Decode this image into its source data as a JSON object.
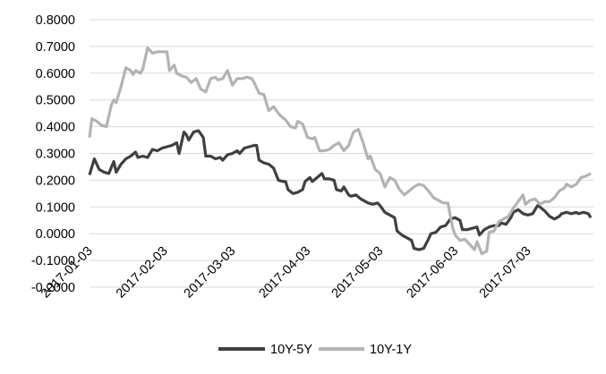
{
  "chart_data": {
    "type": "line",
    "title": "",
    "xlabel": "",
    "ylabel": "",
    "ylim": [
      -0.2,
      0.8
    ],
    "y_ticks": [
      "0.8000",
      "0.7000",
      "0.6000",
      "0.5000",
      "0.4000",
      "0.3000",
      "0.2000",
      "0.1000",
      "0.0000",
      "-0.1000",
      "-0.2000"
    ],
    "x_ticks": [
      "2017-01-03",
      "2017-02-03",
      "2017-03-03",
      "2017-04-03",
      "2017-05-03",
      "2017-06-03",
      "2017-07-03"
    ],
    "grid": "horizontal",
    "legend_position": "bottom",
    "series": [
      {
        "name": "10Y-5Y",
        "color": "#404040",
        "points": [
          [
            "2017-01-03",
            0.22
          ],
          [
            "2017-01-05",
            0.28
          ],
          [
            "2017-01-07",
            0.24
          ],
          [
            "2017-01-09",
            0.23
          ],
          [
            "2017-01-11",
            0.225
          ],
          [
            "2017-01-13",
            0.27
          ],
          [
            "2017-01-14",
            0.23
          ],
          [
            "2017-01-16",
            0.26
          ],
          [
            "2017-01-18",
            0.28
          ],
          [
            "2017-01-20",
            0.29
          ],
          [
            "2017-01-22",
            0.305
          ],
          [
            "2017-01-23",
            0.285
          ],
          [
            "2017-01-25",
            0.29
          ],
          [
            "2017-01-27",
            0.285
          ],
          [
            "2017-01-29",
            0.315
          ],
          [
            "2017-01-31",
            0.31
          ],
          [
            "2017-02-02",
            0.32
          ],
          [
            "2017-02-04",
            0.325
          ],
          [
            "2017-02-06",
            0.33
          ],
          [
            "2017-02-08",
            0.34
          ],
          [
            "2017-02-09",
            0.3
          ],
          [
            "2017-02-11",
            0.38
          ],
          [
            "2017-02-12",
            0.37
          ],
          [
            "2017-02-13",
            0.35
          ],
          [
            "2017-02-15",
            0.38
          ],
          [
            "2017-02-17",
            0.385
          ],
          [
            "2017-02-19",
            0.36
          ],
          [
            "2017-02-20",
            0.29
          ],
          [
            "2017-02-22",
            0.29
          ],
          [
            "2017-02-24",
            0.28
          ],
          [
            "2017-02-26",
            0.285
          ],
          [
            "2017-02-27",
            0.275
          ],
          [
            "2017-03-01",
            0.295
          ],
          [
            "2017-03-03",
            0.3
          ],
          [
            "2017-03-05",
            0.31
          ],
          [
            "2017-03-06",
            0.3
          ],
          [
            "2017-03-08",
            0.32
          ],
          [
            "2017-03-10",
            0.325
          ],
          [
            "2017-03-12",
            0.33
          ],
          [
            "2017-03-13",
            0.33
          ],
          [
            "2017-03-14",
            0.275
          ],
          [
            "2017-03-16",
            0.265
          ],
          [
            "2017-03-18",
            0.26
          ],
          [
            "2017-03-20",
            0.245
          ],
          [
            "2017-03-22",
            0.2
          ],
          [
            "2017-03-24",
            0.195
          ],
          [
            "2017-03-25",
            0.195
          ],
          [
            "2017-03-26",
            0.165
          ],
          [
            "2017-03-28",
            0.15
          ],
          [
            "2017-03-30",
            0.155
          ],
          [
            "2017-04-01",
            0.165
          ],
          [
            "2017-04-02",
            0.195
          ],
          [
            "2017-04-04",
            0.21
          ],
          [
            "2017-04-05",
            0.195
          ],
          [
            "2017-04-07",
            0.21
          ],
          [
            "2017-04-09",
            0.225
          ],
          [
            "2017-04-10",
            0.205
          ],
          [
            "2017-04-12",
            0.205
          ],
          [
            "2017-04-14",
            0.2
          ],
          [
            "2017-04-15",
            0.165
          ],
          [
            "2017-04-17",
            0.16
          ],
          [
            "2017-04-18",
            0.175
          ],
          [
            "2017-04-20",
            0.145
          ],
          [
            "2017-04-21",
            0.14
          ],
          [
            "2017-04-23",
            0.145
          ],
          [
            "2017-04-25",
            0.13
          ],
          [
            "2017-04-27",
            0.12
          ],
          [
            "2017-04-28",
            0.115
          ],
          [
            "2017-04-30",
            0.11
          ],
          [
            "2017-05-02",
            0.115
          ],
          [
            "2017-05-03",
            0.105
          ],
          [
            "2017-05-05",
            0.08
          ],
          [
            "2017-05-07",
            0.07
          ],
          [
            "2017-05-09",
            0.06
          ],
          [
            "2017-05-10",
            0.01
          ],
          [
            "2017-05-12",
            -0.005
          ],
          [
            "2017-05-14",
            -0.015
          ],
          [
            "2017-05-16",
            -0.025
          ],
          [
            "2017-05-17",
            -0.055
          ],
          [
            "2017-05-19",
            -0.06
          ],
          [
            "2017-05-21",
            -0.055
          ],
          [
            "2017-05-23",
            -0.02
          ],
          [
            "2017-05-24",
            0.0
          ],
          [
            "2017-05-26",
            0.005
          ],
          [
            "2017-05-28",
            0.025
          ],
          [
            "2017-05-30",
            0.03
          ],
          [
            "2017-06-01",
            0.055
          ],
          [
            "2017-06-03",
            0.06
          ],
          [
            "2017-06-05",
            0.05
          ],
          [
            "2017-06-06",
            0.015
          ],
          [
            "2017-06-08",
            0.015
          ],
          [
            "2017-06-10",
            0.02
          ],
          [
            "2017-06-12",
            0.025
          ],
          [
            "2017-06-13",
            -0.005
          ],
          [
            "2017-06-15",
            0.015
          ],
          [
            "2017-06-17",
            0.025
          ],
          [
            "2017-06-19",
            0.03
          ],
          [
            "2017-06-21",
            0.03
          ],
          [
            "2017-06-22",
            0.04
          ],
          [
            "2017-06-24",
            0.035
          ],
          [
            "2017-06-26",
            0.06
          ],
          [
            "2017-06-27",
            0.08
          ],
          [
            "2017-06-29",
            0.09
          ],
          [
            "2017-07-01",
            0.075
          ],
          [
            "2017-07-03",
            0.07
          ],
          [
            "2017-07-05",
            0.075
          ],
          [
            "2017-07-07",
            0.105
          ],
          [
            "2017-07-08",
            0.1
          ],
          [
            "2017-07-10",
            0.085
          ],
          [
            "2017-07-12",
            0.065
          ],
          [
            "2017-07-14",
            0.055
          ],
          [
            "2017-07-16",
            0.065
          ],
          [
            "2017-07-17",
            0.075
          ],
          [
            "2017-07-19",
            0.08
          ],
          [
            "2017-07-21",
            0.075
          ],
          [
            "2017-07-23",
            0.08
          ],
          [
            "2017-07-24",
            0.075
          ],
          [
            "2017-07-26",
            0.08
          ],
          [
            "2017-07-28",
            0.075
          ],
          [
            "2017-07-29",
            0.06
          ]
        ]
      },
      {
        "name": "10Y-1Y",
        "color": "#b3b3b3",
        "points": [
          [
            "2017-01-03",
            0.36
          ],
          [
            "2017-01-04",
            0.43
          ],
          [
            "2017-01-06",
            0.42
          ],
          [
            "2017-01-08",
            0.405
          ],
          [
            "2017-01-10",
            0.4
          ],
          [
            "2017-01-12",
            0.48
          ],
          [
            "2017-01-13",
            0.5
          ],
          [
            "2017-01-14",
            0.49
          ],
          [
            "2017-01-16",
            0.55
          ],
          [
            "2017-01-18",
            0.62
          ],
          [
            "2017-01-20",
            0.61
          ],
          [
            "2017-01-21",
            0.595
          ],
          [
            "2017-01-22",
            0.61
          ],
          [
            "2017-01-24",
            0.6
          ],
          [
            "2017-01-25",
            0.615
          ],
          [
            "2017-01-27",
            0.695
          ],
          [
            "2017-01-29",
            0.675
          ],
          [
            "2017-01-31",
            0.68
          ],
          [
            "2017-02-02",
            0.68
          ],
          [
            "2017-02-04",
            0.68
          ],
          [
            "2017-02-05",
            0.61
          ],
          [
            "2017-02-07",
            0.63
          ],
          [
            "2017-02-08",
            0.6
          ],
          [
            "2017-02-10",
            0.59
          ],
          [
            "2017-02-12",
            0.585
          ],
          [
            "2017-02-14",
            0.565
          ],
          [
            "2017-02-16",
            0.58
          ],
          [
            "2017-02-18",
            0.54
          ],
          [
            "2017-02-20",
            0.53
          ],
          [
            "2017-02-22",
            0.58
          ],
          [
            "2017-02-24",
            0.585
          ],
          [
            "2017-02-25",
            0.575
          ],
          [
            "2017-02-27",
            0.58
          ],
          [
            "2017-03-01",
            0.61
          ],
          [
            "2017-03-03",
            0.555
          ],
          [
            "2017-03-05",
            0.58
          ],
          [
            "2017-03-07",
            0.58
          ],
          [
            "2017-03-09",
            0.585
          ],
          [
            "2017-03-11",
            0.58
          ],
          [
            "2017-03-12",
            0.565
          ],
          [
            "2017-03-14",
            0.525
          ],
          [
            "2017-03-16",
            0.52
          ],
          [
            "2017-03-18",
            0.46
          ],
          [
            "2017-03-20",
            0.475
          ],
          [
            "2017-03-22",
            0.45
          ],
          [
            "2017-03-23",
            0.44
          ],
          [
            "2017-03-25",
            0.425
          ],
          [
            "2017-03-27",
            0.4
          ],
          [
            "2017-03-29",
            0.395
          ],
          [
            "2017-03-30",
            0.42
          ],
          [
            "2017-04-01",
            0.41
          ],
          [
            "2017-04-03",
            0.36
          ],
          [
            "2017-04-05",
            0.355
          ],
          [
            "2017-04-06",
            0.36
          ],
          [
            "2017-04-08",
            0.31
          ],
          [
            "2017-04-10",
            0.31
          ],
          [
            "2017-04-12",
            0.315
          ],
          [
            "2017-04-14",
            0.33
          ],
          [
            "2017-04-16",
            0.34
          ],
          [
            "2017-04-18",
            0.31
          ],
          [
            "2017-04-20",
            0.33
          ],
          [
            "2017-04-22",
            0.38
          ],
          [
            "2017-04-24",
            0.39
          ],
          [
            "2017-04-26",
            0.34
          ],
          [
            "2017-04-28",
            0.28
          ],
          [
            "2017-04-29",
            0.29
          ],
          [
            "2017-05-01",
            0.24
          ],
          [
            "2017-05-03",
            0.225
          ],
          [
            "2017-05-05",
            0.175
          ],
          [
            "2017-05-07",
            0.21
          ],
          [
            "2017-05-09",
            0.2
          ],
          [
            "2017-05-11",
            0.165
          ],
          [
            "2017-05-13",
            0.145
          ],
          [
            "2017-05-15",
            0.16
          ],
          [
            "2017-05-17",
            0.175
          ],
          [
            "2017-05-19",
            0.185
          ],
          [
            "2017-05-21",
            0.18
          ],
          [
            "2017-05-23",
            0.16
          ],
          [
            "2017-05-25",
            0.135
          ],
          [
            "2017-05-27",
            0.125
          ],
          [
            "2017-05-29",
            0.115
          ],
          [
            "2017-05-31",
            0.115
          ],
          [
            "2017-06-02",
            0.02
          ],
          [
            "2017-06-03",
            -0.005
          ],
          [
            "2017-06-05",
            -0.025
          ],
          [
            "2017-06-07",
            -0.02
          ],
          [
            "2017-06-09",
            -0.04
          ],
          [
            "2017-06-11",
            -0.06
          ],
          [
            "2017-06-12",
            -0.03
          ],
          [
            "2017-06-14",
            -0.075
          ],
          [
            "2017-06-16",
            -0.065
          ],
          [
            "2017-06-17",
            0.005
          ],
          [
            "2017-06-19",
            0.01
          ],
          [
            "2017-06-21",
            0.045
          ],
          [
            "2017-06-23",
            0.055
          ],
          [
            "2017-06-25",
            0.065
          ],
          [
            "2017-06-27",
            0.095
          ],
          [
            "2017-06-29",
            0.12
          ],
          [
            "2017-07-01",
            0.145
          ],
          [
            "2017-07-02",
            0.11
          ],
          [
            "2017-07-04",
            0.125
          ],
          [
            "2017-07-06",
            0.13
          ],
          [
            "2017-07-08",
            0.11
          ],
          [
            "2017-07-10",
            0.12
          ],
          [
            "2017-07-12",
            0.12
          ],
          [
            "2017-07-14",
            0.135
          ],
          [
            "2017-07-16",
            0.16
          ],
          [
            "2017-07-18",
            0.17
          ],
          [
            "2017-07-19",
            0.185
          ],
          [
            "2017-07-21",
            0.175
          ],
          [
            "2017-07-23",
            0.185
          ],
          [
            "2017-07-25",
            0.21
          ],
          [
            "2017-07-27",
            0.215
          ],
          [
            "2017-07-29",
            0.225
          ]
        ]
      }
    ]
  }
}
